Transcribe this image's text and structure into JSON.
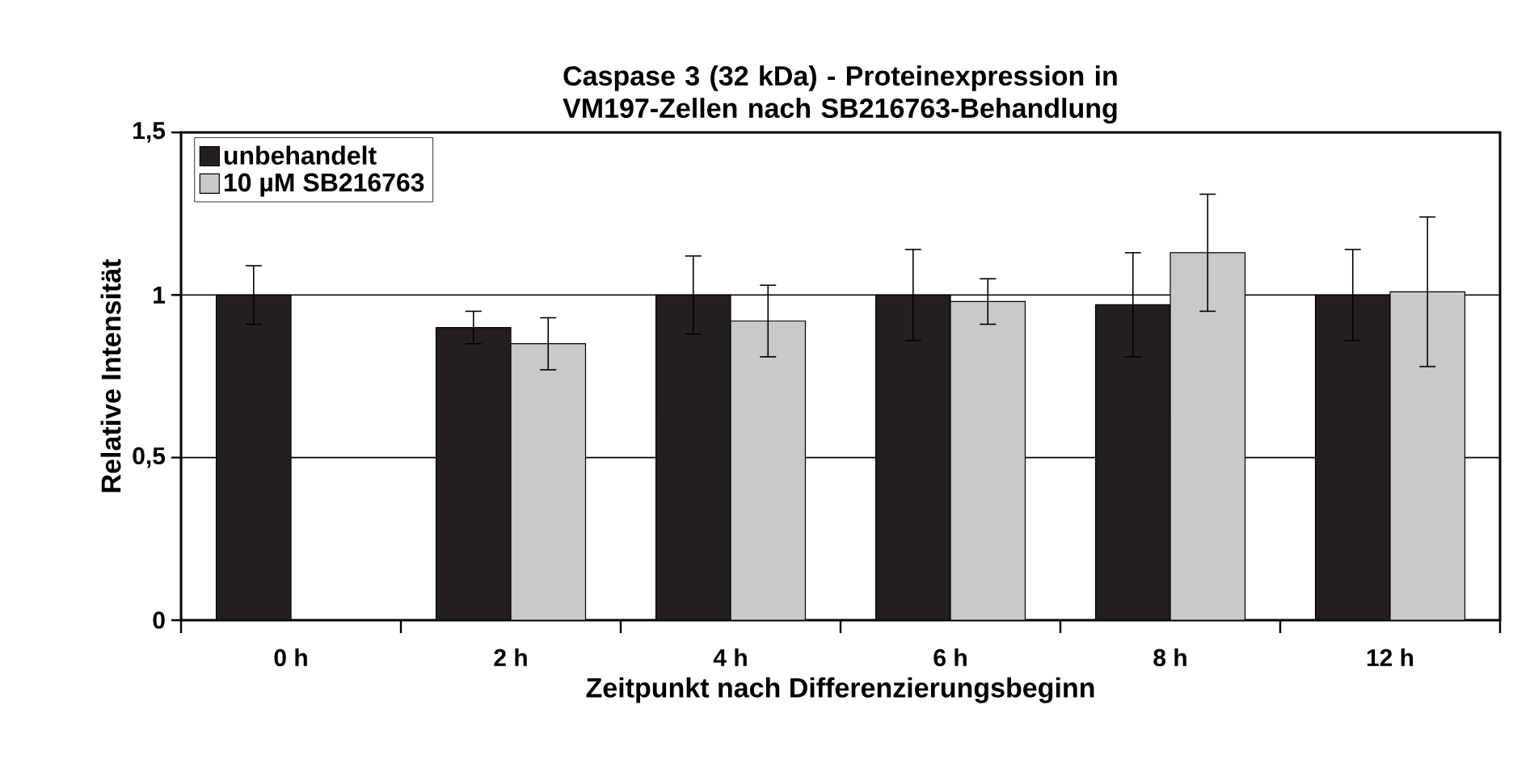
{
  "chart_data": {
    "type": "bar",
    "title": "Caspase 3 (32 kDa) - Proteinexpression in VM197-Zellen nach SB216763-Behandlung",
    "xlabel": "Zeitpunkt nach Differenzierungsbeginn",
    "ylabel": "Relative Intensität",
    "categories": [
      "0 h",
      "2 h",
      "4 h",
      "6 h",
      "8 h",
      "12 h"
    ],
    "series": [
      {
        "name": "unbehandelt",
        "color": "#231f20",
        "values": [
          1.0,
          0.9,
          1.0,
          1.0,
          0.97,
          1.0
        ],
        "errors": [
          0.09,
          0.05,
          0.12,
          0.14,
          0.16,
          0.14
        ]
      },
      {
        "name": "10 µM SB216763",
        "color": "#c8c9cb",
        "values": [
          null,
          0.85,
          0.92,
          0.98,
          1.13,
          1.01
        ],
        "errors": [
          null,
          0.08,
          0.11,
          0.07,
          0.18,
          0.23
        ]
      }
    ],
    "ylim": [
      0,
      1.5
    ],
    "yticks": [
      0,
      {
        "value": 0.5,
        "label": "0,5"
      },
      1,
      {
        "value": 1.5,
        "label": "1,5"
      }
    ],
    "grid": "y",
    "legend": "top left"
  }
}
